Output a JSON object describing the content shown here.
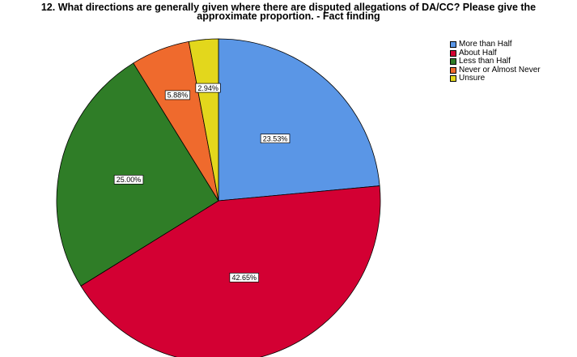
{
  "chart_data": {
    "type": "pie",
    "title_lines": [
      "12. What directions are generally given where there are disputed allegations of DA/CC? Please give the",
      "approximate proportion. - Fact finding"
    ],
    "categories": [
      "More than Half",
      "About Half",
      "Less than Half",
      "Never or Almost Never",
      "Unsure"
    ],
    "values": [
      23.53,
      42.65,
      25.0,
      5.88,
      2.94
    ],
    "value_labels": [
      "23.53%",
      "42.65%",
      "25.00%",
      "5.88%",
      "2.94%"
    ],
    "colors": [
      "#5a96e6",
      "#d30033",
      "#2f7d27",
      "#ef6a2d",
      "#e3d71c"
    ],
    "start_angle_deg": 0,
    "direction": "clockwise",
    "legend_position": "top-right"
  }
}
